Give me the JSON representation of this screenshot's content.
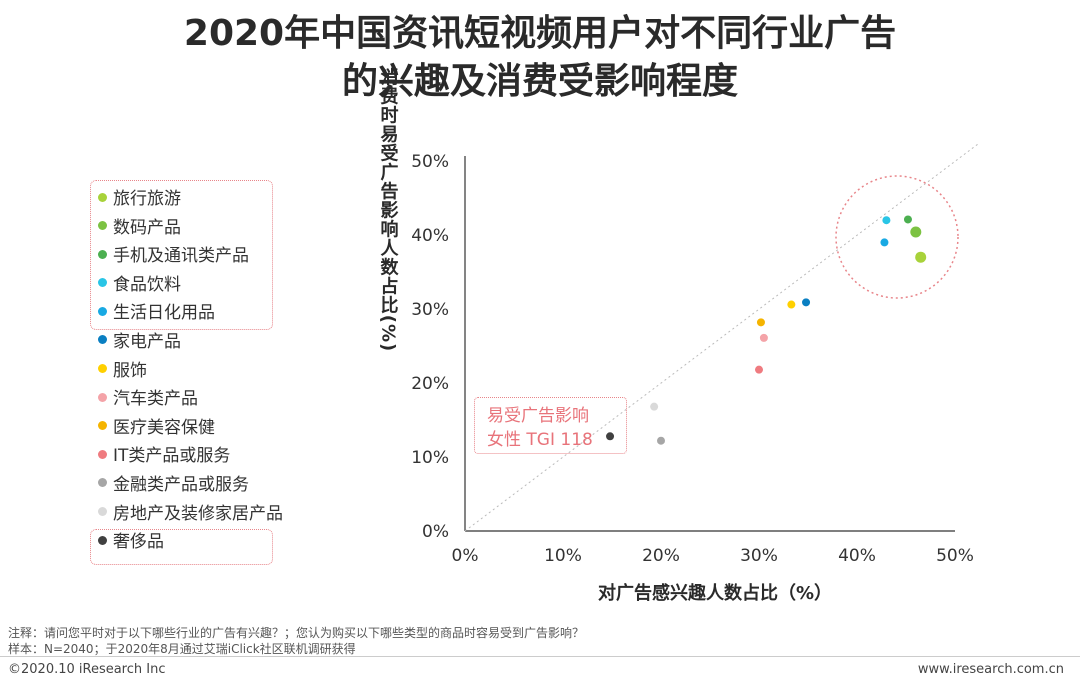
{
  "header": {
    "title_line1": "2020年中国资讯短视频用户对不同行业广告",
    "title_line2": "的兴趣及消费受影响程度"
  },
  "legend": {
    "items": [
      {
        "label": "旅行旅游",
        "color": "#a8d23a"
      },
      {
        "label": "数码产品",
        "color": "#7cc242"
      },
      {
        "label": "手机及通讯类产品",
        "color": "#4caf50"
      },
      {
        "label": "食品饮料",
        "color": "#29c5e6"
      },
      {
        "label": "生活日化用品",
        "color": "#18a9e3"
      },
      {
        "label": "家电产品",
        "color": "#0a7fc2"
      },
      {
        "label": "服饰",
        "color": "#ffd000"
      },
      {
        "label": "汽车类产品",
        "color": "#f4a3a8"
      },
      {
        "label": "医疗美容保健",
        "color": "#f5b400"
      },
      {
        "label": "IT类产品或服务",
        "color": "#ef7b80"
      },
      {
        "label": "金融类产品或服务",
        "color": "#a6a6a6"
      },
      {
        "label": "房地产及装修家居产品",
        "color": "#d9d9d9"
      },
      {
        "label": "奢侈品",
        "color": "#404040"
      }
    ]
  },
  "annotation": {
    "line1": "易受广告影响",
    "line2": "女性 TGI 118"
  },
  "chart_data": {
    "type": "scatter",
    "xlabel": "对广告感兴趣人数占比（%）",
    "ylabel": "消费时易受广告影响人数占比(%)",
    "xlim": [
      0,
      50
    ],
    "ylim": [
      0,
      50
    ],
    "x_ticks": [
      "0%",
      "10%",
      "20%",
      "30%",
      "40%",
      "50%"
    ],
    "y_ticks": [
      "0%",
      "10%",
      "20%",
      "30%",
      "40%",
      "50%"
    ],
    "diagonal_reference": true,
    "points": [
      {
        "name": "旅行旅游",
        "x": 46.5,
        "y": 37.0
      },
      {
        "name": "数码产品",
        "x": 46.0,
        "y": 40.4
      },
      {
        "name": "手机及通讯类产品",
        "x": 45.2,
        "y": 42.1
      },
      {
        "name": "食品饮料",
        "x": 43.0,
        "y": 42.0
      },
      {
        "name": "生活日化用品",
        "x": 42.8,
        "y": 39.0
      },
      {
        "name": "家电产品",
        "x": 34.8,
        "y": 30.9
      },
      {
        "name": "服饰",
        "x": 33.3,
        "y": 30.6
      },
      {
        "name": "汽车类产品",
        "x": 30.5,
        "y": 26.1
      },
      {
        "name": "医疗美容保健",
        "x": 30.2,
        "y": 28.2
      },
      {
        "name": "IT类产品或服务",
        "x": 30.0,
        "y": 21.8
      },
      {
        "name": "金融类产品或服务",
        "x": 20.0,
        "y": 12.2
      },
      {
        "name": "房地产及装修家居产品",
        "x": 19.3,
        "y": 16.8
      },
      {
        "name": "奢侈品",
        "x": 14.8,
        "y": 12.8
      }
    ]
  },
  "notes": {
    "note1": "注释：请问您平时对于以下哪些行业的广告有兴趣？；您认为购买以下哪些类型的商品时容易受到广告影响？",
    "note2": "样本：N=2040；于2020年8月通过艾瑞iClick社区联机调研获得"
  },
  "footer": {
    "left": "©2020.10 iResearch Inc",
    "right": "www.iresearch.com.cn"
  }
}
